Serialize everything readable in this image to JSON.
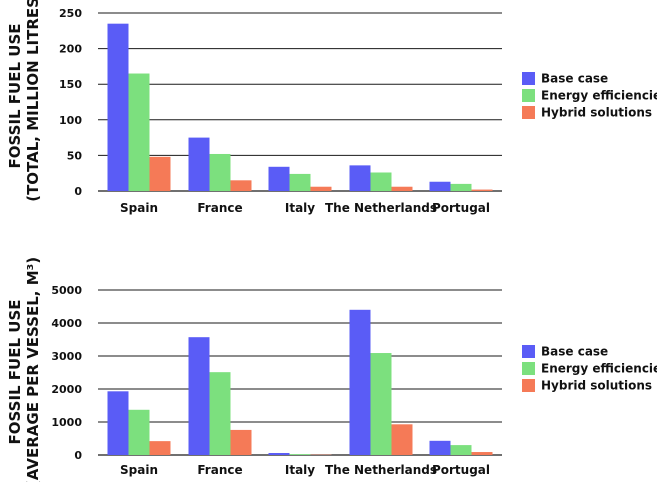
{
  "colors": {
    "base_case": "#5a5cf6",
    "energy_efficiencies": "#7ce07e",
    "hybrid_solutions": "#f57a57"
  },
  "chart_data": [
    {
      "type": "bar",
      "ylabel_line1": "FOSSIL FUEL USE",
      "ylabel_line2": "(TOTAL, MILLION LITRES)",
      "categories": [
        "Spain",
        "France",
        "Italy",
        "The Netherlands",
        "Portugal"
      ],
      "ylim": [
        0,
        250
      ],
      "yticks": [
        0,
        50,
        100,
        150,
        200,
        250
      ],
      "grid": true,
      "legend_position": "right",
      "series": [
        {
          "name": "Base case",
          "color_key": "base_case",
          "values": [
            235,
            75,
            34,
            36,
            13
          ]
        },
        {
          "name": "Energy efficiencies",
          "color_key": "energy_efficiencies",
          "values": [
            165,
            52,
            24,
            26,
            10
          ]
        },
        {
          "name": "Hybrid solutions",
          "color_key": "hybrid_solutions",
          "values": [
            48,
            15,
            6,
            6,
            2
          ]
        }
      ]
    },
    {
      "type": "bar",
      "ylabel_line1": "FOSSIL FUEL USE",
      "ylabel_line2": "(AVERAGE PER VESSEL, M³)",
      "categories": [
        "Spain",
        "France",
        "Italy",
        "The Netherlands",
        "Portugal"
      ],
      "ylim": [
        0,
        5000
      ],
      "yticks": [
        0,
        1000,
        2000,
        3000,
        4000,
        5000
      ],
      "grid": true,
      "legend_position": "right",
      "series": [
        {
          "name": "Base case",
          "color_key": "base_case",
          "values": [
            1930,
            3570,
            60,
            4400,
            430
          ]
        },
        {
          "name": "Energy efficiencies",
          "color_key": "energy_efficiencies",
          "values": [
            1370,
            2510,
            25,
            3090,
            300
          ]
        },
        {
          "name": "Hybrid solutions",
          "color_key": "hybrid_solutions",
          "values": [
            420,
            760,
            10,
            930,
            90
          ]
        }
      ]
    }
  ]
}
